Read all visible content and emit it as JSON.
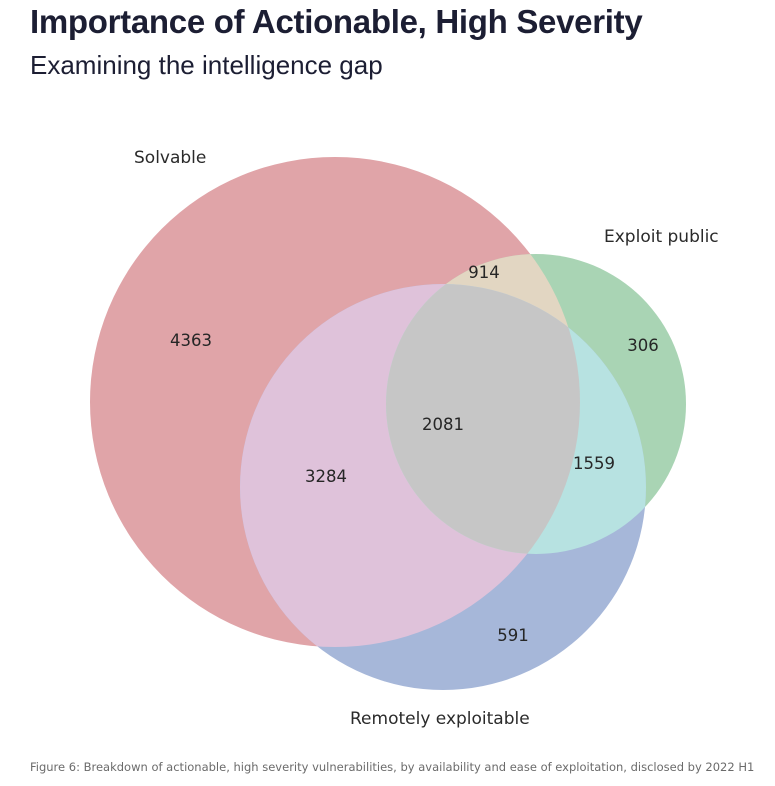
{
  "header": {
    "title": "Importance of Actionable, High Severity",
    "subtitle": "Examining the intelligence gap"
  },
  "caption": "Figure 6: Breakdown of actionable, high severity vulnerabilities, by availability and ease of exploitation, disclosed by 2022 H1",
  "chart_data": {
    "type": "venn",
    "title": "Importance of Actionable, High Severity",
    "subtitle": "Examining the intelligence gap",
    "sets": [
      {
        "name": "Solvable",
        "color": "#e0a4a8"
      },
      {
        "name": "Exploit public",
        "color": "#a9d4b4"
      },
      {
        "name": "Remotely exploitable",
        "color": "#a6b7d9"
      }
    ],
    "regions": [
      {
        "sets": [
          "Solvable"
        ],
        "value": 4363
      },
      {
        "sets": [
          "Exploit public"
        ],
        "value": 306
      },
      {
        "sets": [
          "Remotely exploitable"
        ],
        "value": 591
      },
      {
        "sets": [
          "Solvable",
          "Exploit public"
        ],
        "value": 914
      },
      {
        "sets": [
          "Solvable",
          "Remotely exploitable"
        ],
        "value": 3284
      },
      {
        "sets": [
          "Exploit public",
          "Remotely exploitable"
        ],
        "value": 1559
      },
      {
        "sets": [
          "Solvable",
          "Exploit public",
          "Remotely exploitable"
        ],
        "value": 2081
      }
    ],
    "region_colors": {
      "Solvable&Exploit public": "#e2d6c2",
      "Solvable&Remotely exploitable": "#dfc2da",
      "Exploit public&Remotely exploitable": "#b7e2e1",
      "all": "#c6c6c6"
    }
  }
}
